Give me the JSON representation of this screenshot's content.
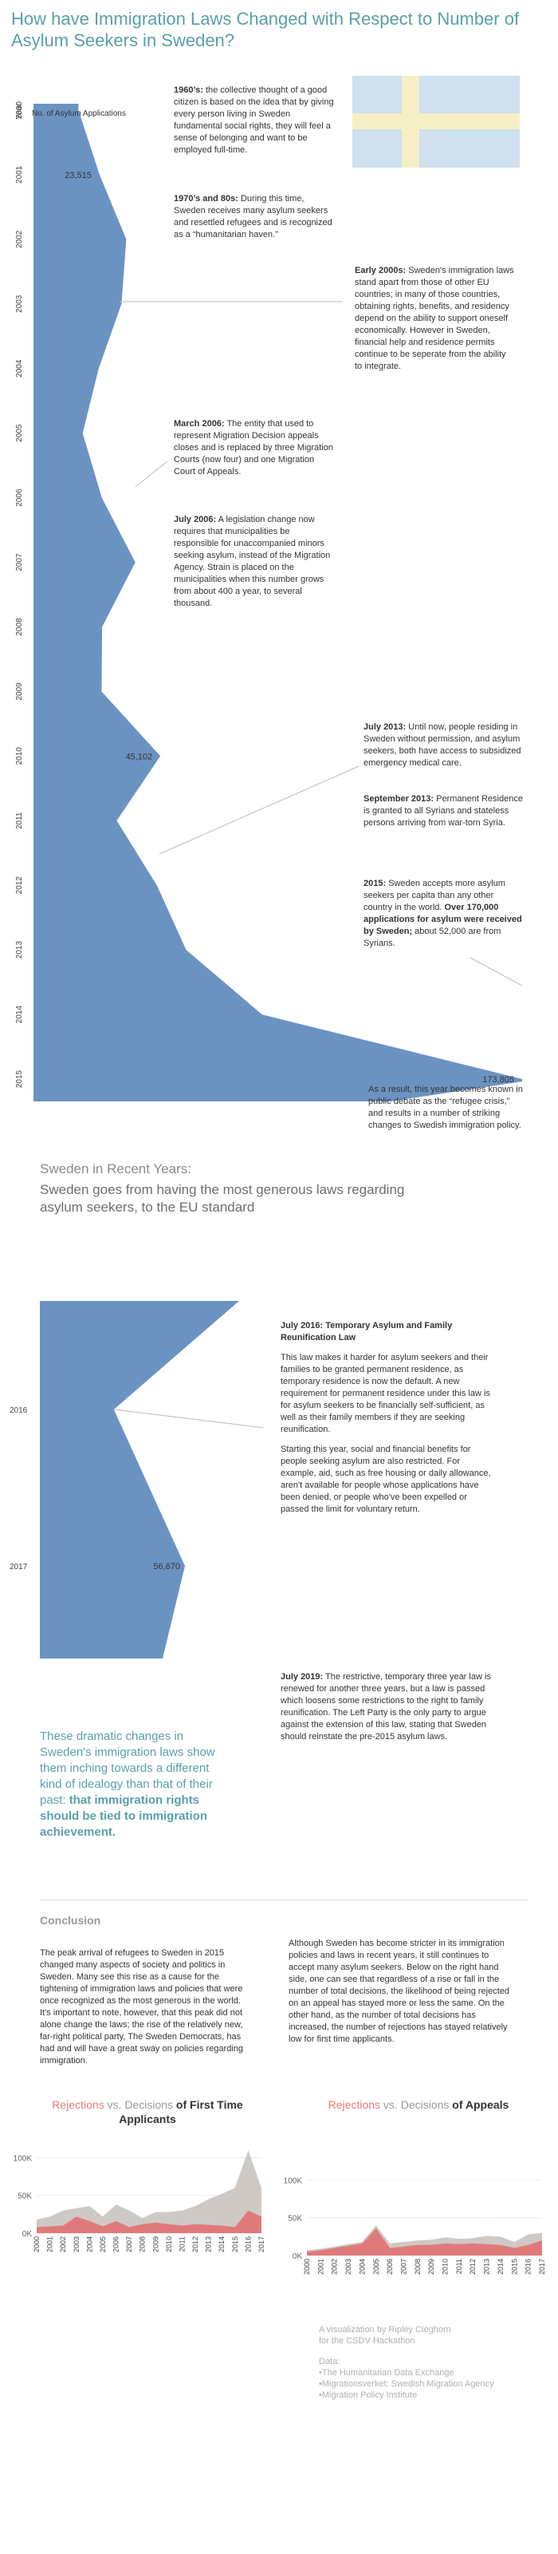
{
  "title": "How have Immigration Laws  Changed with Respect to Number of Asylum Seekers in Sweden?",
  "main_chart": {
    "axis_label": "Year",
    "series_label": "No. of Asylum Applications",
    "years": [
      "2000",
      "2001",
      "2002",
      "2003",
      "2004",
      "2005",
      "2006",
      "2007",
      "2008",
      "2009",
      "2010",
      "2011",
      "2012",
      "2013",
      "2014",
      "2015"
    ],
    "labels": [
      {
        "year": "2001",
        "text": "23,515"
      },
      {
        "year": "2010",
        "text": "45,102"
      },
      {
        "year": "2015",
        "text": "173,805"
      }
    ]
  },
  "chart_data": [
    {
      "type": "area",
      "title": "",
      "xlabel": "No. of Asylum Applications",
      "ylabel": "Year",
      "x": [
        2000,
        2001,
        2002,
        2003,
        2004,
        2005,
        2006,
        2007,
        2008,
        2009,
        2010,
        2011,
        2012,
        2013,
        2014,
        2015
      ],
      "values": [
        16000,
        23515,
        33000,
        31300,
        23200,
        17500,
        24300,
        36200,
        24400,
        24200,
        45102,
        29600,
        43900,
        54300,
        81300,
        173805
      ],
      "data_labels": {
        "2001": "23,515",
        "2010": "45,102",
        "2015": "173,805"
      }
    },
    {
      "type": "area",
      "title": "",
      "x": [
        2016,
        2017
      ],
      "values": [
        28900,
        56670
      ],
      "data_labels": {
        "2017": "56,670"
      }
    },
    {
      "type": "area",
      "title": "Rejections vs. Decisions of First Time Applicants",
      "x": [
        2000,
        2001,
        2002,
        2003,
        2004,
        2005,
        2006,
        2007,
        2008,
        2009,
        2010,
        2011,
        2012,
        2013,
        2014,
        2015,
        2016,
        2017
      ],
      "yticks": [
        "100K",
        "50K",
        "0K"
      ],
      "ylim": [
        0,
        110000
      ],
      "series": [
        {
          "name": "Decisions",
          "color": "#cfc9c6",
          "values": [
            18000,
            22000,
            30000,
            33000,
            36000,
            22000,
            38000,
            30000,
            20000,
            28000,
            28000,
            30000,
            36000,
            45000,
            52000,
            60000,
            110000,
            60000
          ]
        },
        {
          "name": "Rejections",
          "color": "#e07a7a",
          "values": [
            8000,
            9000,
            10000,
            22000,
            16000,
            9000,
            16000,
            8000,
            12000,
            14000,
            12000,
            10000,
            12000,
            11000,
            10000,
            8000,
            30000,
            22000
          ]
        }
      ]
    },
    {
      "type": "area",
      "title": "Rejections vs. Decisions of Appeals",
      "x": [
        2000,
        2001,
        2002,
        2003,
        2004,
        2005,
        2006,
        2007,
        2008,
        2009,
        2010,
        2011,
        2012,
        2013,
        2014,
        2015,
        2016,
        2017
      ],
      "yticks": [
        "100K",
        "50K",
        "0K"
      ],
      "ylim": [
        0,
        110000
      ],
      "series": [
        {
          "name": "Decisions",
          "color": "#cfc9c6",
          "values": [
            7000,
            9000,
            12000,
            15000,
            18000,
            40000,
            16000,
            18000,
            20000,
            21000,
            24000,
            22000,
            23000,
            26000,
            25000,
            18000,
            28000,
            30000
          ]
        },
        {
          "name": "Rejections",
          "color": "#e07a7a",
          "values": [
            5000,
            7000,
            10000,
            13000,
            16000,
            36000,
            10000,
            12000,
            14000,
            14000,
            16000,
            15000,
            16000,
            15000,
            14000,
            10000,
            14000,
            20000
          ]
        }
      ]
    }
  ],
  "annotations": {
    "a1960_b": "1960’s:",
    "a1960": " the collective thought of a good citizen is based on the idea that  by giving every person living in Sweden fundamental social rights, they will feel a sense of belonging and want to be employed full-time.",
    "a1970_b": "1970’s and 80s:",
    "a1970": " During this time, Sweden receives many asylum seekers and resettled refugees and is recognized as a “humanitarian haven.”",
    "a2000_b": "Early 2000s:",
    "a2000": " Sweden's immigration laws stand apart from those of other EU countries;  in many of those countries, obtaining  rights, benefits, and residency depend on the ability to support oneself economically. However in Sweden, financial help and residence permits continue to be seperate from the ability to integrate.",
    "m2006_b": "March 2006:",
    "m2006": " The entity that used to represent Migration Decision appeals closes and is replaced by three Migration Courts (now four) and one Migration Court of Appeals.",
    "j2006_b": "July 2006:",
    "j2006": " A legislation change now requires that municipalities be responsible for unaccompanied minors seeking asylum, instead of the Migration Agency. Strain is placed on the municipalities when this number grows from about 400 a year, to several thousand.",
    "j2013_b": "July 2013:",
    "j2013": " Until now, people residing in Sweden without permission, and asylum seekers, both have access to subsidized emergency medical care.",
    "s2013_b": "September 2013:",
    "s2013": " Permanent Residence is granted to all Syrians and stateless persons arriving from war-torn Syria.",
    "y2015_b": "2015:",
    "y2015": " Sweden accepts more asylum seekers per capita than any other country in the world. ",
    "y2015_b2": "Over 170,000 applications for asylum were received by Sweden;",
    "y2015_c": " about 52,000 are from Syrians.",
    "result": "As a result, this year  becomes known in public debate as the “refugee crisis,” and results in a number of striking changes to Swedish immigration policy."
  },
  "section2": {
    "title": "Sweden in Recent Years:",
    "subtitle": "Sweden goes from having the most generous laws regarding asylum seekers, to the EU standard",
    "years": [
      "2016",
      "2017"
    ],
    "label2017": "56,670",
    "j2016_title": "July 2016: Temporary Asylum and Family Reunification Law",
    "j2016_p1": "This law makes it harder for asylum seekers and their families to be granted permanent residence, as temporary residence is now the default. A new requirement for permanent residence under this law is for asylum seekers to be financially self-sufficient, as well as their family members if they are seeking  reunification.",
    "j2016_p2": "Starting this year, social and financial benefits for people seeking asylum are also restricted. For example, aid, such as free housing or daily allowance, aren't available for people whose applications have been denied, or people who've been expelled or passed the limit for voluntary return.",
    "j2019_b": "July 2019:",
    "j2019": " The restrictive, temporary three year law is renewed for another three years, but a law is passed which loosens some restrictions to the right to family reunification. The Left Party is the only party to argue against the extension of this law, stating that Sweden should reinstate the pre-2015 asylum laws.",
    "teal_1": "These dramatic changes in Sweden's immigration laws show them inching towards a different kind of idealogy than that of their past: ",
    "teal_b": "that immigration rights should be tied to immigration achievement."
  },
  "conclusion": {
    "heading": "Conclusion",
    "left": "The peak arrival of refugees to Sweden in 2015 changed many aspects of society and politics in Sweden. Many see this rise as a cause for the tightening of immigration laws and policies that were once recognized as the most generous in the world. It's important to note, however, that this peak did not alone change the laws; the rise of the relatively new, far-right political party, The Sweden Democrats,  has had and will have a great sway on policies regarding immigration.",
    "right": "Although Sweden has become stricter in its immigration policies and laws in recent years, it still continues to accept many asylum seekers. Below on the right hand side, one can see that regardless of a rise or fall in the number of total decisions, the likelihood of being rejected on an appeal has stayed more or less the same. On the other hand, as the number of total decisions has increased, the number of rejections has stayed relatively low for first time applicants."
  },
  "small_charts": {
    "c1_red": "Rejections",
    "c1_vs": " vs. ",
    "c1_grey": "Decisions",
    "c1_rest": " of First Time Applicants",
    "c2_red": "Rejections",
    "c2_vs": " vs. ",
    "c2_grey": "Decisions",
    "c2_rest": " of Appeals"
  },
  "footer": {
    "credit1": "A visualization by Ripley Cleghorn",
    "credit2": "for the CSDV Hackathon",
    "data_label": "Data:",
    "src1": "•The Humanitarian Data Exchange",
    "src2": "•Migrationsverket: Swedish Migration Agency",
    "src3": "•Migration Policy Institute"
  },
  "colors": {
    "area": "#6b93c2",
    "accent": "#5aa0a6",
    "flag_blue": "#cfe0ef",
    "flag_yellow": "#f6efc5",
    "rejections": "#e07a7a",
    "decisions": "#cfc9c6"
  }
}
